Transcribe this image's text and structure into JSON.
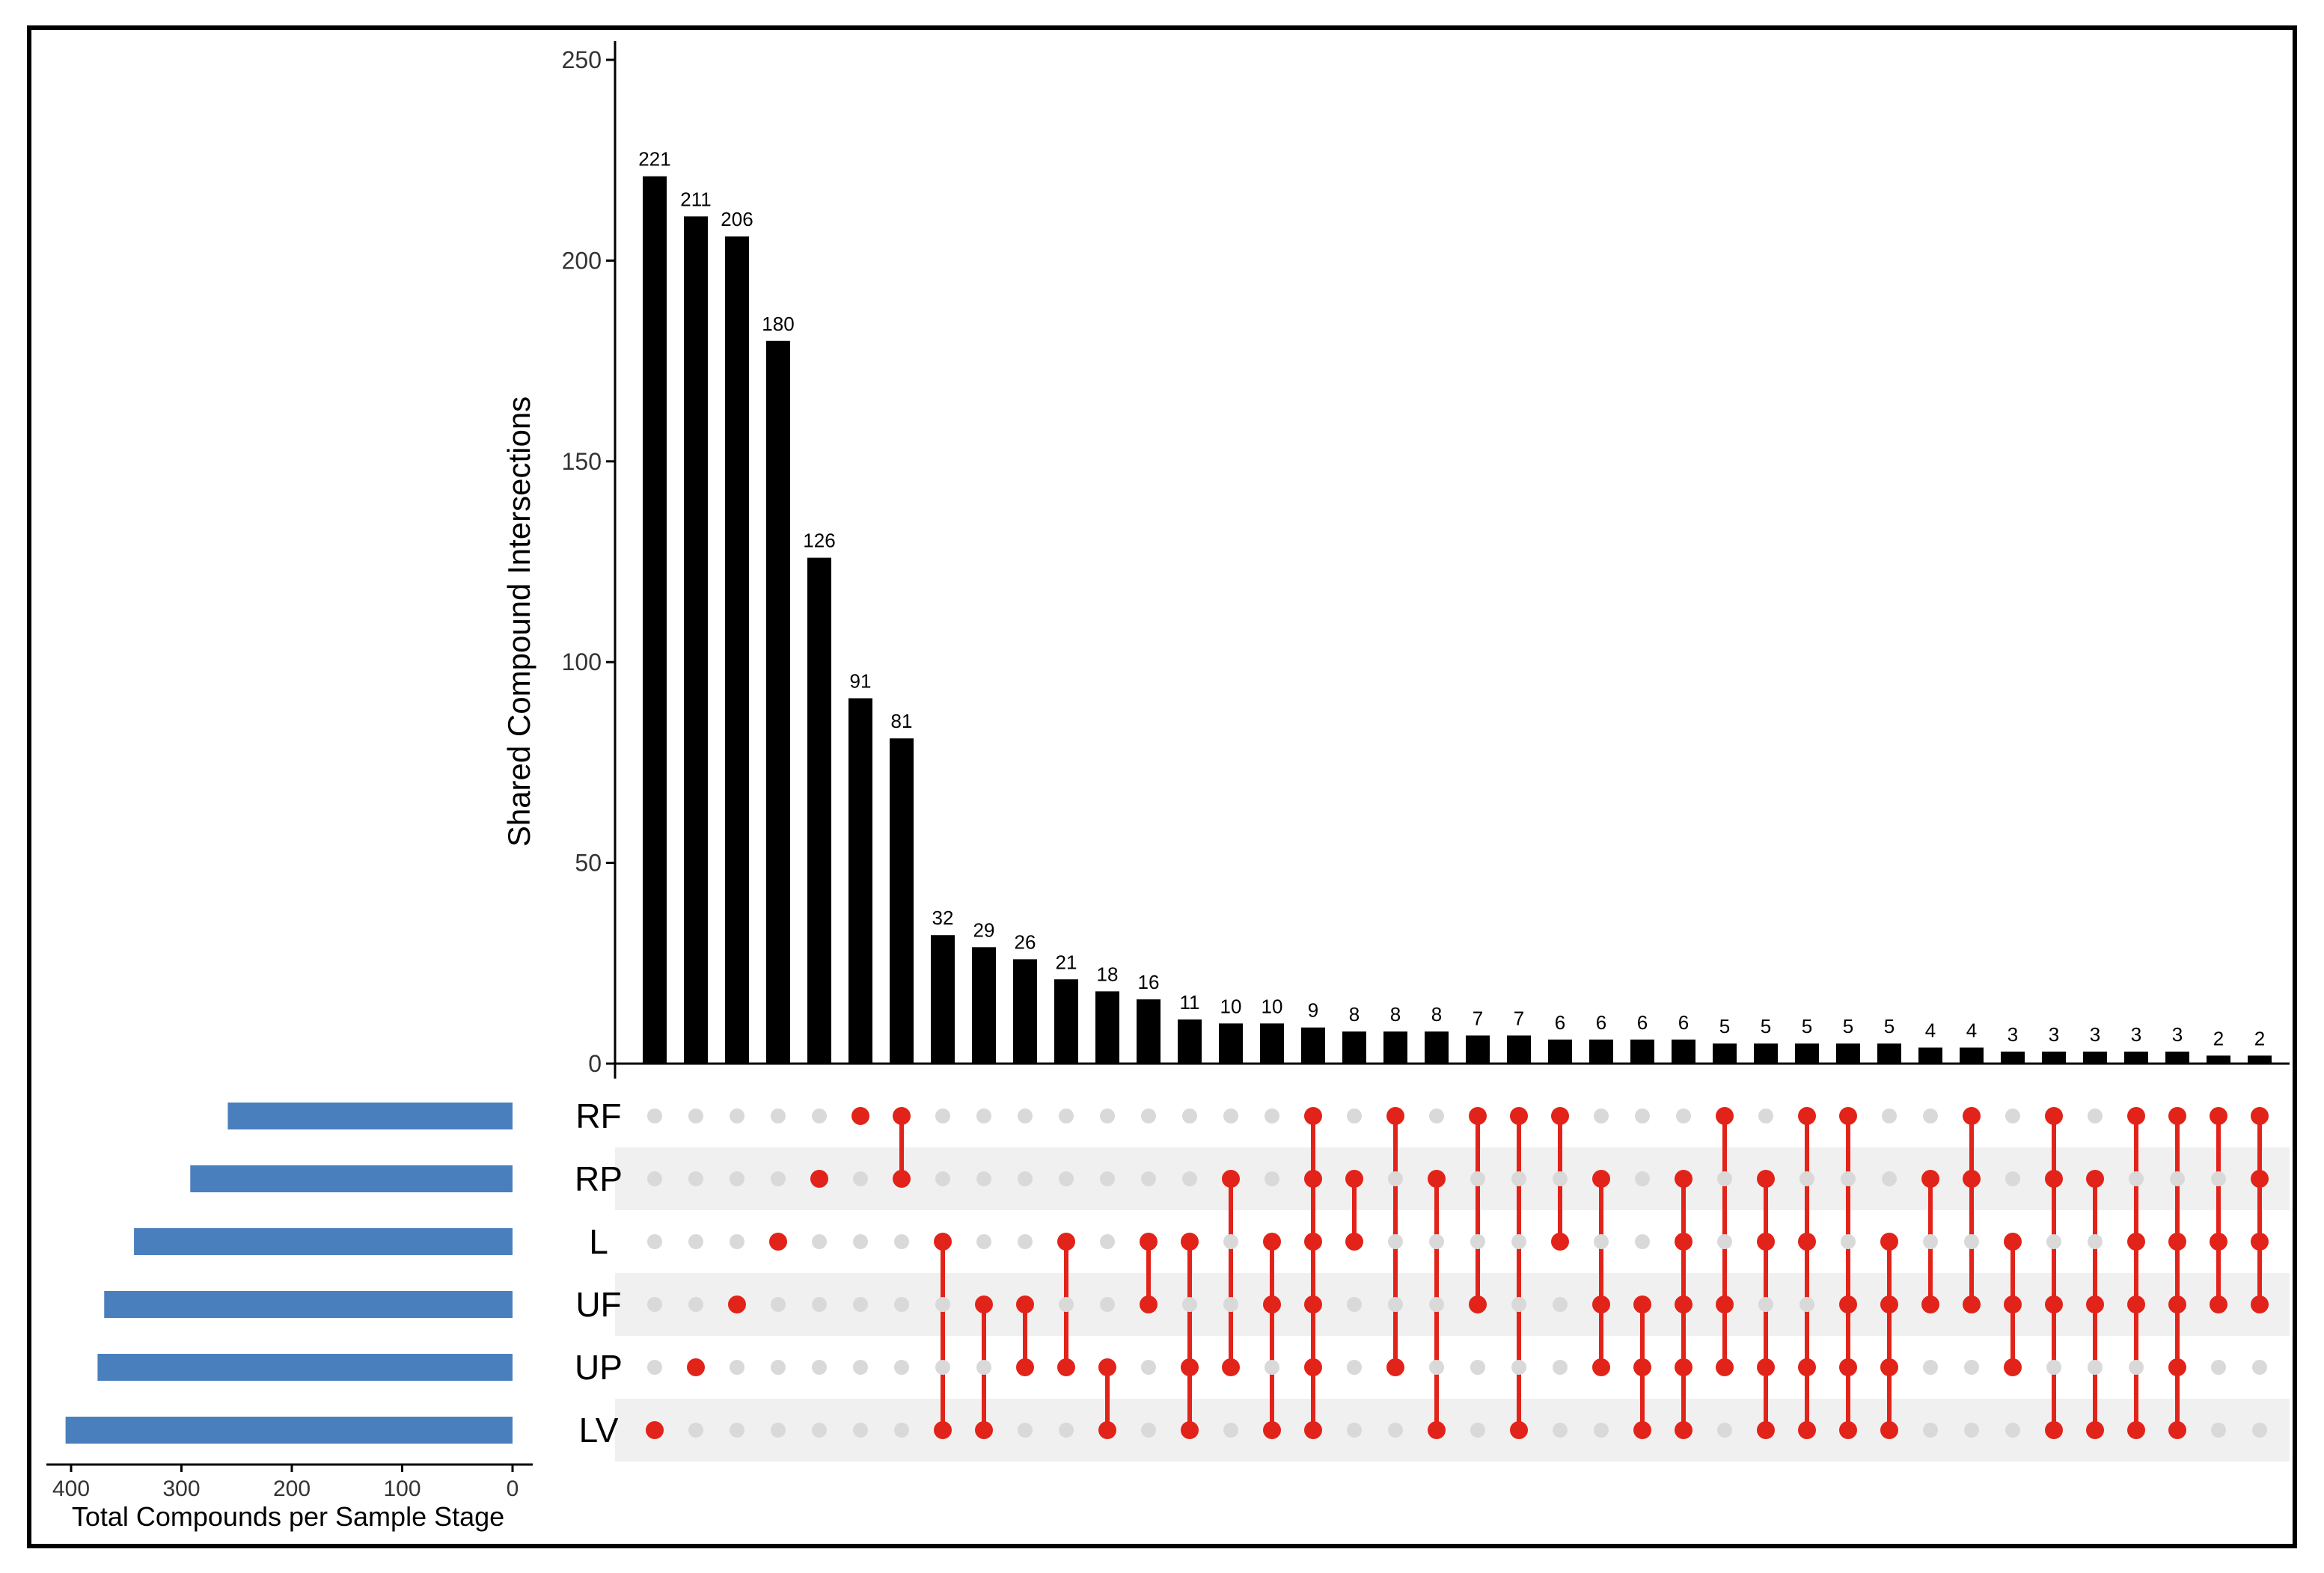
{
  "chart_data": {
    "type": "upset",
    "ylabel": "Shared Compound Intersections",
    "set_size_label": "Total Compounds per Sample Stage",
    "ylim": [
      0,
      250
    ],
    "yticks": [
      0,
      50,
      100,
      150,
      200,
      250
    ],
    "set_size_ticks": [
      400,
      300,
      200,
      100,
      0
    ],
    "sets": [
      "RF",
      "RP",
      "L",
      "UF",
      "UP",
      "LV"
    ],
    "set_sizes": [
      258,
      292,
      343,
      370,
      376,
      405
    ],
    "intersections": [
      {
        "value": 221,
        "members": [
          "LV"
        ]
      },
      {
        "value": 211,
        "members": [
          "UP"
        ]
      },
      {
        "value": 206,
        "members": [
          "UF"
        ]
      },
      {
        "value": 180,
        "members": [
          "L"
        ]
      },
      {
        "value": 126,
        "members": [
          "RP"
        ]
      },
      {
        "value": 91,
        "members": [
          "RF"
        ]
      },
      {
        "value": 81,
        "members": [
          "RF",
          "RP"
        ]
      },
      {
        "value": 32,
        "members": [
          "L",
          "LV"
        ]
      },
      {
        "value": 29,
        "members": [
          "UF",
          "LV"
        ]
      },
      {
        "value": 26,
        "members": [
          "UF",
          "UP"
        ]
      },
      {
        "value": 21,
        "members": [
          "L",
          "UP"
        ]
      },
      {
        "value": 18,
        "members": [
          "UP",
          "LV"
        ]
      },
      {
        "value": 16,
        "members": [
          "L",
          "UF"
        ]
      },
      {
        "value": 11,
        "members": [
          "L",
          "UP",
          "LV"
        ]
      },
      {
        "value": 10,
        "members": [
          "RP",
          "UP"
        ]
      },
      {
        "value": 10,
        "members": [
          "L",
          "UF",
          "LV"
        ]
      },
      {
        "value": 9,
        "members": [
          "RF",
          "RP",
          "L",
          "UF",
          "UP",
          "LV"
        ]
      },
      {
        "value": 8,
        "members": [
          "RP",
          "L"
        ]
      },
      {
        "value": 8,
        "members": [
          "RF",
          "UP"
        ]
      },
      {
        "value": 8,
        "members": [
          "RP",
          "LV"
        ]
      },
      {
        "value": 7,
        "members": [
          "RF",
          "UF"
        ]
      },
      {
        "value": 7,
        "members": [
          "RF",
          "LV"
        ]
      },
      {
        "value": 6,
        "members": [
          "RF",
          "L"
        ]
      },
      {
        "value": 6,
        "members": [
          "RP",
          "UF",
          "UP"
        ]
      },
      {
        "value": 6,
        "members": [
          "UF",
          "UP",
          "LV"
        ]
      },
      {
        "value": 6,
        "members": [
          "RP",
          "L",
          "UF",
          "UP",
          "LV"
        ]
      },
      {
        "value": 5,
        "members": [
          "RF",
          "UF",
          "UP"
        ]
      },
      {
        "value": 5,
        "members": [
          "RP",
          "L",
          "UP",
          "LV"
        ]
      },
      {
        "value": 5,
        "members": [
          "RF",
          "L",
          "UP",
          "LV"
        ]
      },
      {
        "value": 5,
        "members": [
          "RF",
          "UF",
          "UP",
          "LV"
        ]
      },
      {
        "value": 5,
        "members": [
          "L",
          "UF",
          "UP",
          "LV"
        ]
      },
      {
        "value": 4,
        "members": [
          "RP",
          "UF"
        ]
      },
      {
        "value": 4,
        "members": [
          "RF",
          "RP",
          "UF"
        ]
      },
      {
        "value": 3,
        "members": [
          "L",
          "UF",
          "UP"
        ]
      },
      {
        "value": 3,
        "members": [
          "RF",
          "RP",
          "UF",
          "LV"
        ]
      },
      {
        "value": 3,
        "members": [
          "RP",
          "UF",
          "LV"
        ]
      },
      {
        "value": 3,
        "members": [
          "RF",
          "L",
          "UF",
          "LV"
        ]
      },
      {
        "value": 3,
        "members": [
          "RF",
          "L",
          "UF",
          "UP",
          "LV"
        ]
      },
      {
        "value": 2,
        "members": [
          "RF",
          "L",
          "UF"
        ]
      },
      {
        "value": 2,
        "members": [
          "RF",
          "RP",
          "L",
          "UF"
        ]
      }
    ],
    "colors": {
      "bar": "#000000",
      "set_bar": "#4a7fbd",
      "dot_active": "#e2231a",
      "dot_inactive": "#d9d9d9",
      "stripe": "#f0f0f0"
    }
  }
}
